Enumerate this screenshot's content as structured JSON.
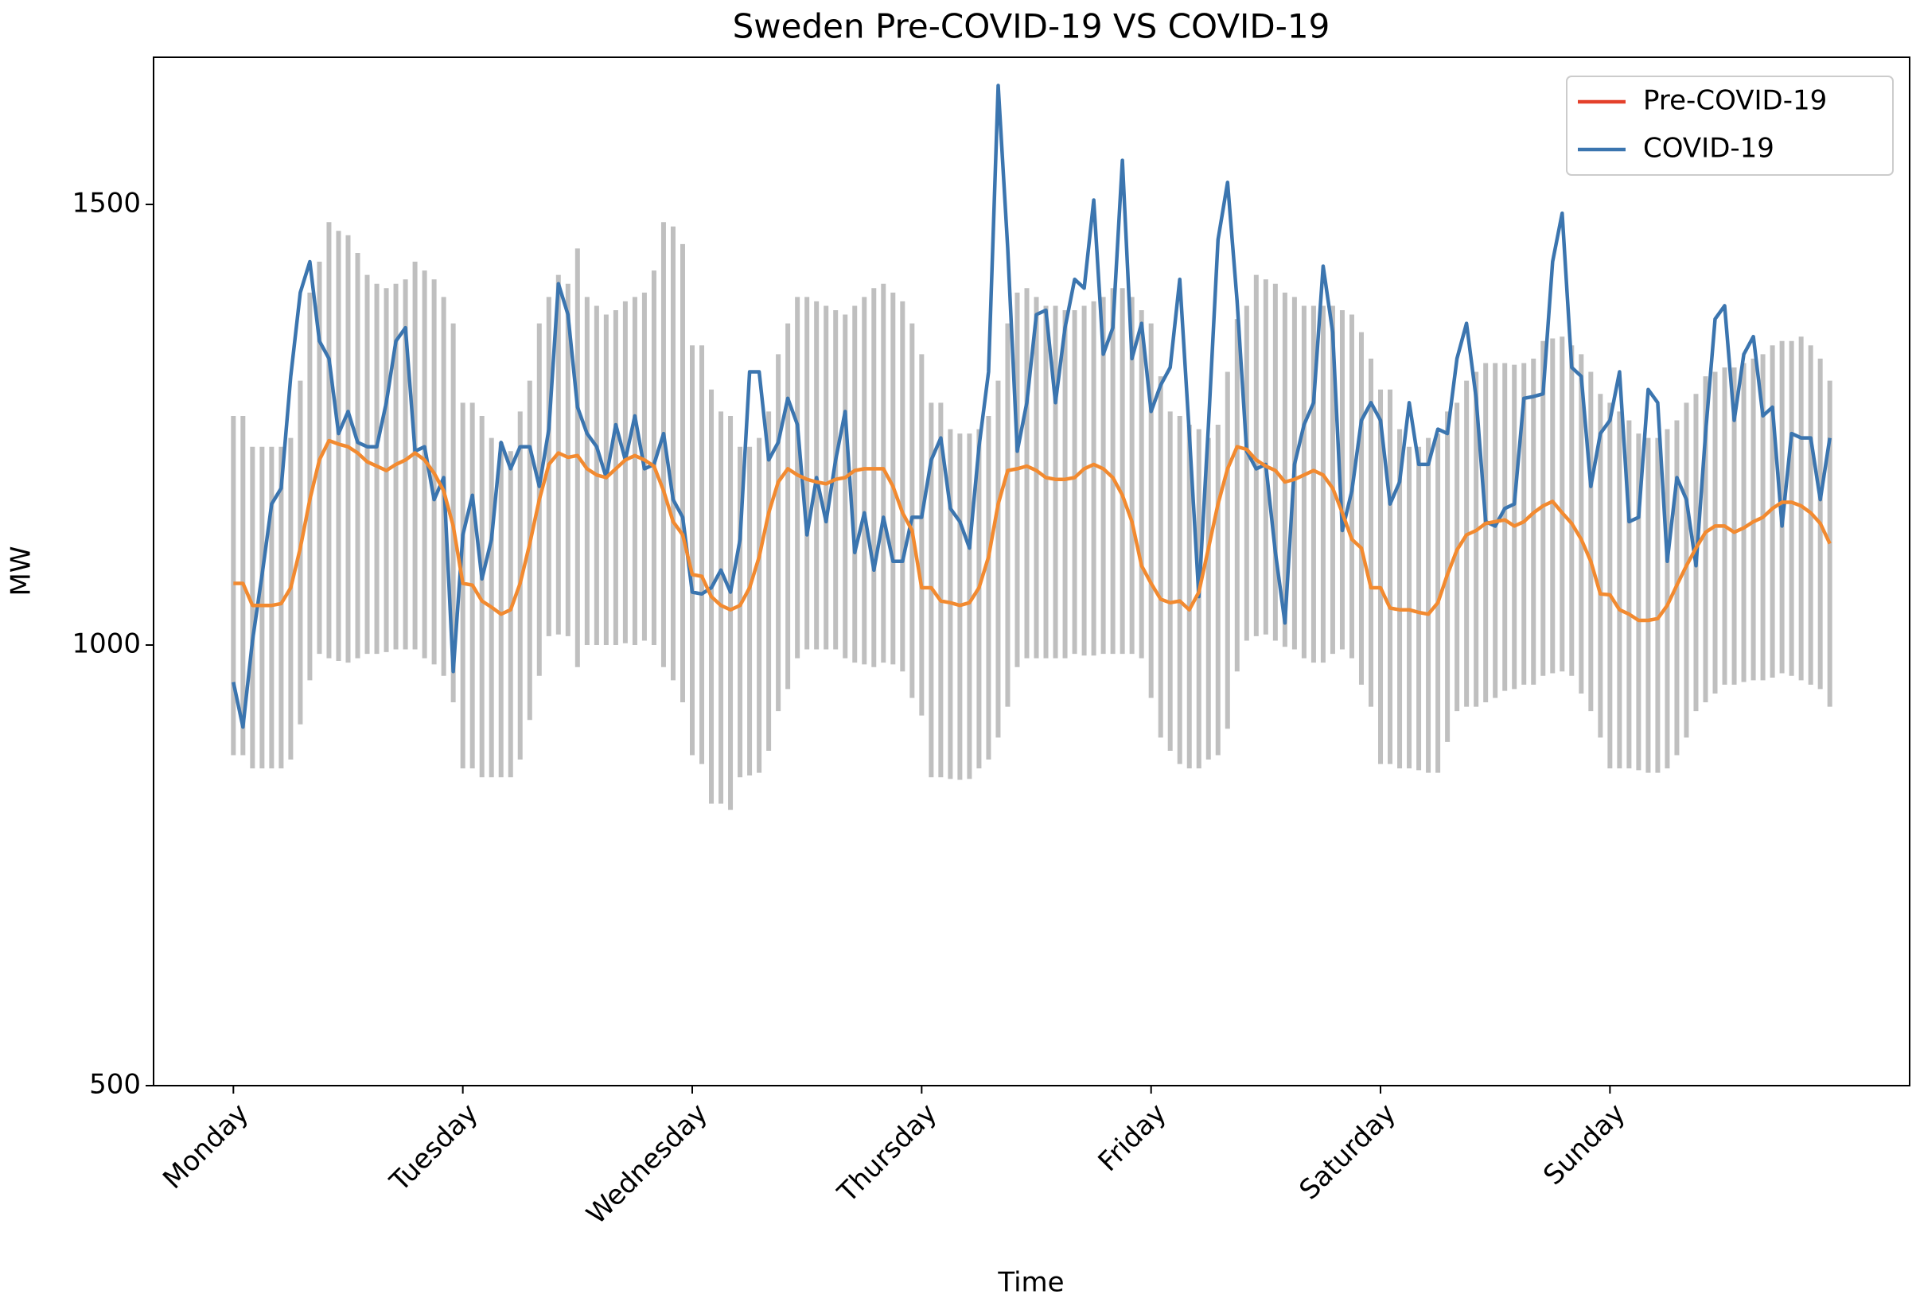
{
  "chart_data": {
    "type": "line",
    "title": "Sweden Pre-COVID-19 VS COVID-19",
    "xlabel": "Time",
    "ylabel": "MW",
    "x": [
      0,
      1,
      2,
      3,
      4,
      5,
      6,
      7,
      8,
      9,
      10,
      11,
      12,
      13,
      14,
      15,
      16,
      17,
      18,
      19,
      20,
      21,
      22,
      23,
      24,
      25,
      26,
      27,
      28,
      29,
      30,
      31,
      32,
      33,
      34,
      35,
      36,
      37,
      38,
      39,
      40,
      41,
      42,
      43,
      44,
      45,
      46,
      47,
      48,
      49,
      50,
      51,
      52,
      53,
      54,
      55,
      56,
      57,
      58,
      59,
      60,
      61,
      62,
      63,
      64,
      65,
      66,
      67,
      68,
      69,
      70,
      71,
      72,
      73,
      74,
      75,
      76,
      77,
      78,
      79,
      80,
      81,
      82,
      83,
      84,
      85,
      86,
      87,
      88,
      89,
      90,
      91,
      92,
      93,
      94,
      95,
      96,
      97,
      98,
      99,
      100,
      101,
      102,
      103,
      104,
      105,
      106,
      107,
      108,
      109,
      110,
      111,
      112,
      113,
      114,
      115,
      116,
      117,
      118,
      119,
      120,
      121,
      122,
      123,
      124,
      125,
      126,
      127,
      128,
      129,
      130,
      131,
      132,
      133,
      134,
      135,
      136,
      137,
      138,
      139,
      140,
      141,
      142,
      143,
      144,
      145,
      146,
      147,
      148,
      149,
      150,
      151,
      152,
      153,
      154,
      155,
      156,
      157,
      158,
      159,
      160,
      161,
      162,
      163,
      164,
      165,
      166,
      167
    ],
    "xlim": [
      -8.35,
      175.35
    ],
    "xticks": [
      {
        "value": 0,
        "label": "Monday"
      },
      {
        "value": 24,
        "label": "Tuesday"
      },
      {
        "value": 48,
        "label": "Wednesday"
      },
      {
        "value": 72,
        "label": "Thursday"
      },
      {
        "value": 96,
        "label": "Friday"
      },
      {
        "value": 120,
        "label": "Saturday"
      },
      {
        "value": 144,
        "label": "Sunday"
      }
    ],
    "ylim": [
      500,
      1667
    ],
    "yticks": [
      500,
      1000,
      1500
    ],
    "legend": "upper right",
    "range": {
      "color": "#bfbfbf",
      "low": [
        875,
        875,
        860,
        860,
        860,
        860,
        870,
        910,
        960,
        990,
        985,
        982,
        980,
        985,
        990,
        990,
        992,
        995,
        995,
        995,
        985,
        978,
        965,
        935,
        860,
        860,
        850,
        850,
        850,
        850,
        870,
        915,
        965,
        1010,
        1012,
        1010,
        975,
        1000,
        1000,
        1000,
        1000,
        1002,
        1000,
        1005,
        1000,
        975,
        960,
        935,
        875,
        865,
        820,
        820,
        813,
        850,
        852,
        855,
        880,
        925,
        950,
        985,
        995,
        995,
        995,
        995,
        985,
        980,
        978,
        975,
        980,
        978,
        970,
        940,
        920,
        850,
        850,
        848,
        847,
        848,
        860,
        870,
        895,
        930,
        975,
        985,
        985,
        985,
        985,
        985,
        990,
        988,
        988,
        990,
        990,
        990,
        990,
        985,
        940,
        895,
        880,
        865,
        860,
        860,
        870,
        875,
        905,
        970,
        1005,
        1010,
        1012,
        1005,
        998,
        995,
        985,
        980,
        980,
        990,
        995,
        985,
        955,
        930,
        865,
        865,
        860,
        860,
        858,
        855,
        855,
        890,
        925,
        930,
        930,
        935,
        940,
        948,
        950,
        955,
        955,
        965,
        968,
        970,
        965,
        945,
        925,
        895,
        860,
        860,
        860,
        858,
        855,
        855,
        860,
        875,
        895,
        925,
        935,
        945,
        955,
        955,
        958,
        960,
        960,
        963,
        968,
        965,
        960,
        955,
        950,
        930
      ],
      "high": [
        1260,
        1260,
        1225,
        1225,
        1225,
        1225,
        1235,
        1300,
        1400,
        1435,
        1480,
        1470,
        1465,
        1445,
        1420,
        1410,
        1405,
        1410,
        1415,
        1435,
        1425,
        1415,
        1395,
        1365,
        1275,
        1275,
        1260,
        1235,
        1230,
        1220,
        1265,
        1300,
        1365,
        1395,
        1420,
        1410,
        1450,
        1395,
        1385,
        1375,
        1380,
        1390,
        1395,
        1400,
        1425,
        1480,
        1475,
        1455,
        1340,
        1340,
        1290,
        1265,
        1260,
        1225,
        1225,
        1235,
        1265,
        1330,
        1365,
        1395,
        1395,
        1390,
        1385,
        1380,
        1375,
        1385,
        1395,
        1405,
        1410,
        1400,
        1390,
        1365,
        1330,
        1275,
        1275,
        1245,
        1240,
        1240,
        1245,
        1260,
        1300,
        1365,
        1400,
        1405,
        1395,
        1385,
        1385,
        1380,
        1380,
        1385,
        1390,
        1395,
        1405,
        1405,
        1395,
        1380,
        1365,
        1305,
        1265,
        1260,
        1250,
        1245,
        1235,
        1250,
        1310,
        1370,
        1385,
        1420,
        1415,
        1410,
        1400,
        1395,
        1385,
        1385,
        1385,
        1385,
        1380,
        1375,
        1355,
        1325,
        1290,
        1290,
        1245,
        1225,
        1225,
        1235,
        1240,
        1265,
        1275,
        1300,
        1310,
        1320,
        1320,
        1320,
        1318,
        1320,
        1325,
        1345,
        1348,
        1350,
        1340,
        1330,
        1310,
        1285,
        1275,
        1265,
        1255,
        1240,
        1235,
        1235,
        1245,
        1255,
        1275,
        1285,
        1305,
        1310,
        1315,
        1315,
        1320,
        1325,
        1330,
        1340,
        1345,
        1345,
        1350,
        1340,
        1325,
        1300
      ]
    },
    "series": [
      {
        "name": "Pre-COVID-19",
        "color": "#f28a30",
        "legend_color": "#e4402b",
        "values": [
          1070,
          1070,
          1045,
          1045,
          1045,
          1047,
          1065,
          1110,
          1165,
          1210,
          1232,
          1228,
          1225,
          1218,
          1208,
          1203,
          1198,
          1205,
          1210,
          1218,
          1210,
          1195,
          1175,
          1135,
          1070,
          1068,
          1050,
          1043,
          1035,
          1040,
          1070,
          1115,
          1165,
          1205,
          1218,
          1213,
          1215,
          1200,
          1193,
          1190,
          1200,
          1210,
          1215,
          1210,
          1203,
          1175,
          1140,
          1125,
          1080,
          1078,
          1055,
          1045,
          1040,
          1045,
          1065,
          1100,
          1150,
          1185,
          1200,
          1193,
          1188,
          1185,
          1183,
          1188,
          1190,
          1198,
          1200,
          1200,
          1200,
          1180,
          1150,
          1130,
          1065,
          1065,
          1050,
          1048,
          1045,
          1048,
          1065,
          1100,
          1160,
          1198,
          1200,
          1203,
          1198,
          1190,
          1188,
          1188,
          1190,
          1200,
          1205,
          1200,
          1190,
          1170,
          1140,
          1090,
          1070,
          1052,
          1048,
          1050,
          1040,
          1060,
          1110,
          1160,
          1200,
          1225,
          1222,
          1210,
          1203,
          1198,
          1185,
          1188,
          1193,
          1198,
          1193,
          1178,
          1150,
          1120,
          1110,
          1065,
          1065,
          1042,
          1040,
          1040,
          1037,
          1035,
          1048,
          1080,
          1108,
          1125,
          1130,
          1138,
          1140,
          1142,
          1135,
          1140,
          1150,
          1158,
          1163,
          1150,
          1138,
          1120,
          1095,
          1058,
          1057,
          1040,
          1035,
          1028,
          1028,
          1030,
          1045,
          1068,
          1090,
          1110,
          1128,
          1135,
          1135,
          1128,
          1133,
          1140,
          1145,
          1155,
          1162,
          1162,
          1158,
          1150,
          1138,
          1115
        ]
      },
      {
        "name": "COVID-19",
        "color": "#3b75af",
        "values": [
          958,
          907,
          1005,
          1080,
          1160,
          1178,
          1305,
          1400,
          1435,
          1345,
          1325,
          1240,
          1265,
          1230,
          1225,
          1225,
          1275,
          1345,
          1360,
          1220,
          1225,
          1165,
          1190,
          970,
          1125,
          1170,
          1075,
          1120,
          1230,
          1200,
          1225,
          1225,
          1180,
          1245,
          1410,
          1375,
          1270,
          1240,
          1225,
          1190,
          1250,
          1210,
          1260,
          1200,
          1205,
          1240,
          1165,
          1145,
          1060,
          1058,
          1065,
          1085,
          1060,
          1120,
          1310,
          1310,
          1210,
          1230,
          1280,
          1250,
          1125,
          1190,
          1140,
          1210,
          1265,
          1105,
          1150,
          1085,
          1145,
          1095,
          1095,
          1145,
          1145,
          1210,
          1235,
          1155,
          1140,
          1110,
          1225,
          1310,
          1635,
          1450,
          1220,
          1275,
          1375,
          1380,
          1275,
          1360,
          1415,
          1405,
          1505,
          1330,
          1360,
          1550,
          1325,
          1365,
          1265,
          1295,
          1315,
          1415,
          1240,
          1055,
          1250,
          1460,
          1525,
          1390,
          1220,
          1200,
          1205,
          1105,
          1025,
          1205,
          1250,
          1275,
          1430,
          1355,
          1130,
          1175,
          1255,
          1275,
          1255,
          1160,
          1185,
          1275,
          1205,
          1205,
          1245,
          1240,
          1325,
          1365,
          1280,
          1140,
          1135,
          1155,
          1160,
          1280,
          1282,
          1285,
          1435,
          1490,
          1315,
          1305,
          1180,
          1240,
          1255,
          1310,
          1140,
          1145,
          1290,
          1275,
          1095,
          1190,
          1165,
          1090,
          1240,
          1370,
          1385,
          1255,
          1330,
          1350,
          1260,
          1270,
          1135,
          1240,
          1235,
          1235,
          1165,
          1235
        ]
      }
    ]
  }
}
